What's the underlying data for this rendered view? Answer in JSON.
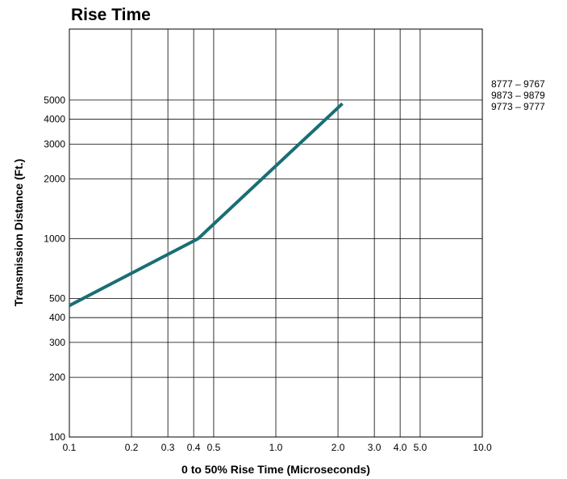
{
  "chart_data": {
    "type": "line",
    "title": "Rise Time",
    "xlabel": "0 to 50% Rise Time (Microseconds)",
    "ylabel": "Transmission Distance (Ft.)",
    "x_scale": "log",
    "y_scale": "log",
    "xlim": [
      0.1,
      10.0
    ],
    "ylim": [
      100,
      10000
    ],
    "grid": true,
    "x_ticks": [
      {
        "value": 0.1,
        "label": "0.1"
      },
      {
        "value": 0.2,
        "label": "0.2"
      },
      {
        "value": 0.3,
        "label": "0.3"
      },
      {
        "value": 0.4,
        "label": "0.4"
      },
      {
        "value": 0.5,
        "label": "0.5"
      },
      {
        "value": 1.0,
        "label": "1.0"
      },
      {
        "value": 2.0,
        "label": "2.0"
      },
      {
        "value": 3.0,
        "label": "3.0"
      },
      {
        "value": 4.0,
        "label": "4.0"
      },
      {
        "value": 5.0,
        "label": "5.0"
      },
      {
        "value": 10.0,
        "label": "10.0"
      }
    ],
    "y_ticks": [
      {
        "value": 100,
        "label": "100"
      },
      {
        "value": 200,
        "label": "200"
      },
      {
        "value": 300,
        "label": "300"
      },
      {
        "value": 400,
        "label": "400"
      },
      {
        "value": 500,
        "label": "500"
      },
      {
        "value": 1000,
        "label": "1000"
      },
      {
        "value": 2000,
        "label": "2000"
      },
      {
        "value": 3000,
        "label": "3000"
      },
      {
        "value": 4000,
        "label": "4000"
      },
      {
        "value": 5000,
        "label": "5000"
      }
    ],
    "legend_position": "right",
    "legend_lines": [
      "8777 – 9767",
      "9873 – 9879",
      "9773 – 9777"
    ],
    "series": [
      {
        "color": "#1a6e75",
        "points": [
          {
            "x": 0.1,
            "y": 460
          },
          {
            "x": 0.42,
            "y": 1000
          },
          {
            "x": 2.1,
            "y": 4800
          }
        ]
      }
    ]
  }
}
